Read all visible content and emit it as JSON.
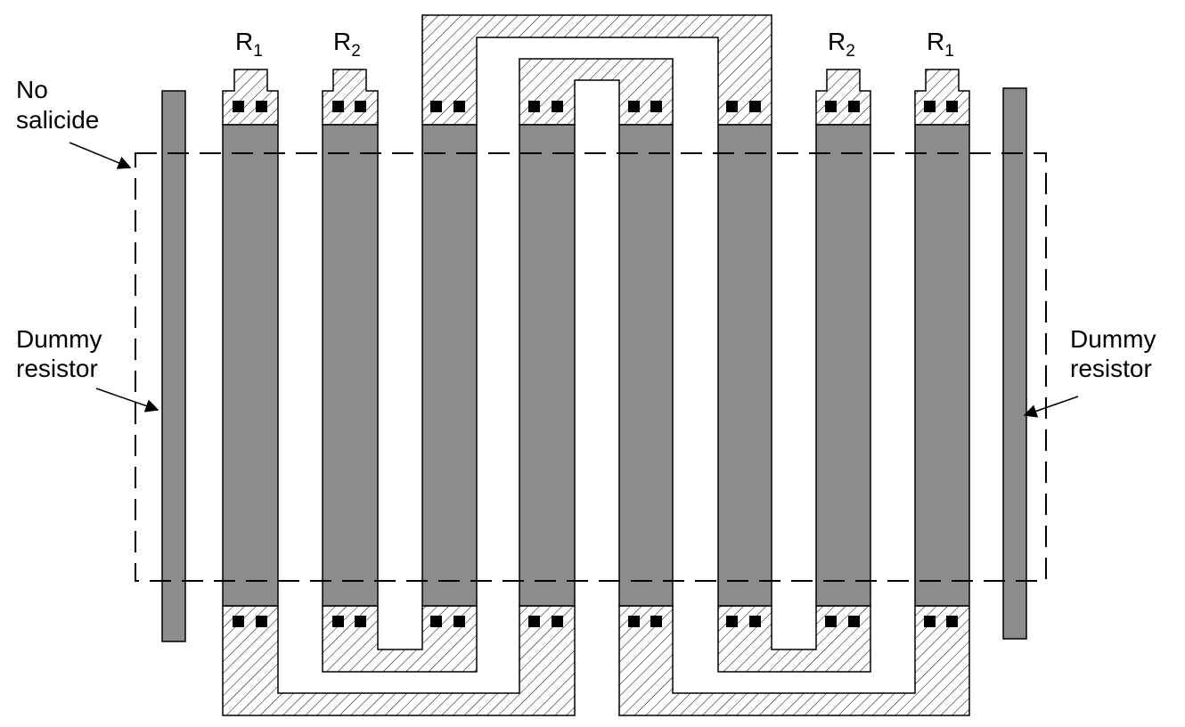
{
  "labels": {
    "no_salicide_line1": "No",
    "no_salicide_line2": "salicide",
    "dummy_left_line1": "Dummy",
    "dummy_left_line2": "resistor",
    "dummy_right_line1": "Dummy",
    "dummy_right_line2": "resistor",
    "resistor_letter": "R",
    "r1_sub": "1",
    "r2_sub": "2"
  },
  "colors": {
    "poly_fill": "#8c8c8c",
    "outline": "#000000",
    "hatch": "#000000",
    "contact": "#000000",
    "background": "#ffffff"
  }
}
